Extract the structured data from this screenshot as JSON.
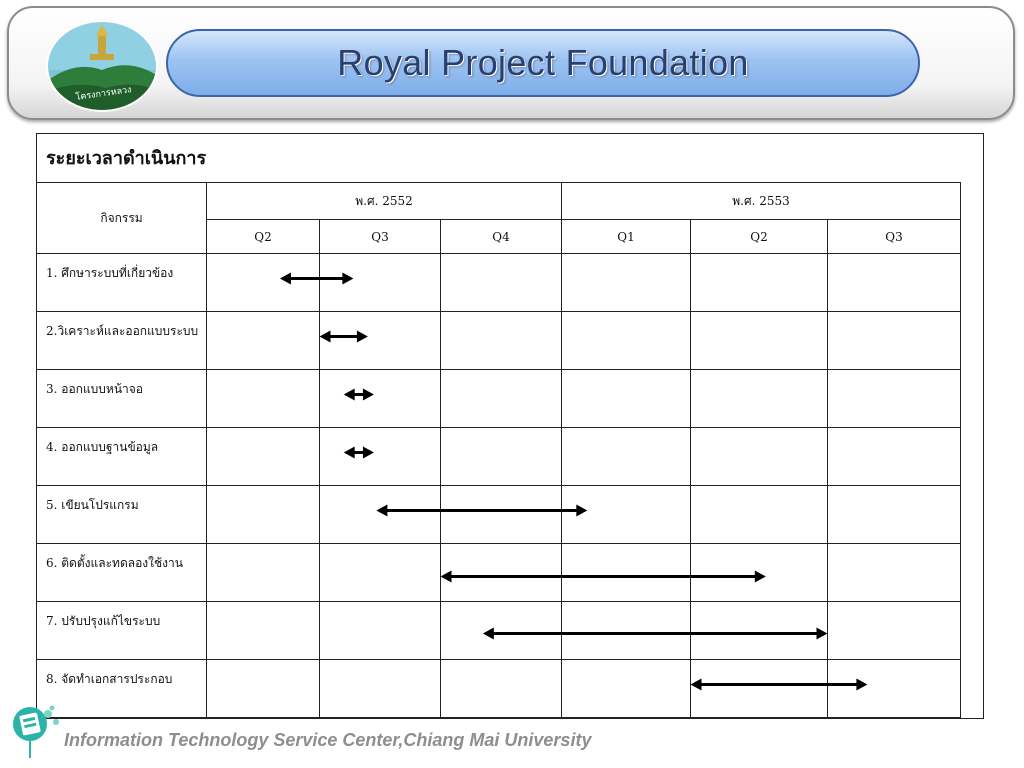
{
  "header": {
    "title": "Royal Project Foundation",
    "logo_text": "โครงการหลวง"
  },
  "document": {
    "title": "ระยะเวลาดำเนินการ"
  },
  "table": {
    "activity_header": "กิจกรรม",
    "years": [
      {
        "label": "พ.ศ. 2552"
      },
      {
        "label": "พ.ศ. 2553"
      }
    ],
    "quarters": [
      "Q2",
      "Q3",
      "Q4",
      "Q1",
      "Q2",
      "Q3"
    ],
    "activities": [
      {
        "label": "1. ศึกษาระบบที่เกี่ยวข้อง",
        "start": 0.65,
        "end": 1.28
      },
      {
        "label": "2.วิเคราะห์และออกแบบระบบ",
        "start": 1.0,
        "end": 1.4
      },
      {
        "label": "3. ออกแบบหน้าจอ",
        "start": 1.2,
        "end": 1.45
      },
      {
        "label": "4. ออกแบบฐานข้อมูล",
        "start": 1.2,
        "end": 1.45
      },
      {
        "label": "5. เขียนโปรแกรม",
        "start": 1.47,
        "end": 3.2
      },
      {
        "label": "6. ติดตั้งและทดลองใช้งาน",
        "start": 2.0,
        "end": 4.55
      },
      {
        "label": "7. ปรับปรุงแก้ไขระบบ",
        "start": 2.35,
        "end": 5.0
      },
      {
        "label": "8. จัดทำเอกสารประกอบ",
        "start": 4.0,
        "end": 5.3
      }
    ]
  },
  "footer": {
    "text": "Information Technology Service Center,Chiang Mai University"
  },
  "colors": {
    "title_pill": "#9dc3f2",
    "title_text": "#2a3f6e",
    "arrow": "#000000",
    "footer_text": "#8e8e8e",
    "footer_logo": "#2bb3a8"
  }
}
